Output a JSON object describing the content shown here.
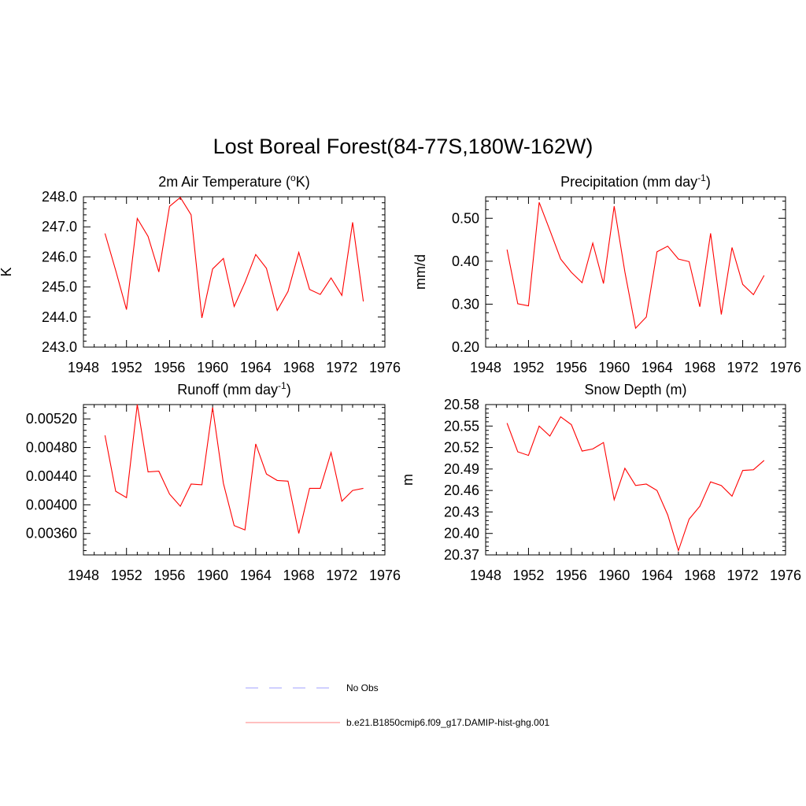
{
  "title": "Lost Boreal Forest(84-77S,180W-162W)",
  "chart_data": [
    {
      "type": "line",
      "title": {
        "main": "2m Air Temperature (",
        "sup": "o",
        "rest": "K)"
      },
      "ylabel": "K",
      "xlim": [
        1948,
        1976
      ],
      "ylim": [
        243.0,
        248.0
      ],
      "yticks": [
        "243.0",
        "244.0",
        "245.0",
        "246.0",
        "247.0",
        "248.0"
      ],
      "xticks": [
        "1948",
        "1952",
        "1956",
        "1960",
        "1964",
        "1968",
        "1972",
        "1976"
      ],
      "x": [
        1950,
        1951,
        1952,
        1953,
        1954,
        1955,
        1956,
        1957,
        1958,
        1959,
        1960,
        1961,
        1962,
        1963,
        1964,
        1965,
        1966,
        1967,
        1968,
        1969,
        1970,
        1971,
        1972,
        1973,
        1974
      ],
      "values": [
        246.78,
        245.55,
        244.25,
        247.28,
        246.68,
        245.5,
        247.68,
        247.98,
        247.4,
        243.97,
        245.6,
        245.95,
        244.35,
        245.15,
        246.08,
        245.62,
        244.22,
        244.85,
        246.15,
        244.92,
        244.75,
        245.3,
        244.72,
        247.15,
        244.52
      ]
    },
    {
      "type": "line",
      "title": {
        "main": "Precipitation (mm day",
        "sup": "-1",
        "rest": ")"
      },
      "ylabel": "mm/d",
      "xlim": [
        1948,
        1976
      ],
      "ylim": [
        0.2,
        0.55
      ],
      "yticks": [
        "0.20",
        "0.30",
        "0.40",
        "0.50"
      ],
      "xticks": [
        "1948",
        "1952",
        "1956",
        "1960",
        "1964",
        "1968",
        "1972",
        "1976"
      ],
      "x": [
        1950,
        1951,
        1952,
        1953,
        1954,
        1955,
        1956,
        1957,
        1958,
        1959,
        1960,
        1961,
        1962,
        1963,
        1964,
        1965,
        1966,
        1967,
        1968,
        1969,
        1970,
        1971,
        1972,
        1973,
        1974
      ],
      "values": [
        0.427,
        0.301,
        0.296,
        0.537,
        0.472,
        0.405,
        0.374,
        0.35,
        0.442,
        0.348,
        0.528,
        0.375,
        0.244,
        0.27,
        0.422,
        0.435,
        0.405,
        0.399,
        0.294,
        0.465,
        0.276,
        0.432,
        0.346,
        0.322,
        0.367
      ]
    },
    {
      "type": "line",
      "title": {
        "main": "Runoff (mm day",
        "sup": "-1",
        "rest": ")"
      },
      "ylabel": "",
      "xlim": [
        1948,
        1976
      ],
      "ylim": [
        0.0033,
        0.0054
      ],
      "yticks": [
        "0.00360",
        "0.00400",
        "0.00440",
        "0.00480",
        "0.00520"
      ],
      "xticks": [
        "1948",
        "1952",
        "1956",
        "1960",
        "1964",
        "1968",
        "1972",
        "1976"
      ],
      "x": [
        1950,
        1951,
        1952,
        1953,
        1954,
        1955,
        1956,
        1957,
        1958,
        1959,
        1960,
        1961,
        1962,
        1963,
        1964,
        1965,
        1966,
        1967,
        1968,
        1969,
        1970,
        1971,
        1972,
        1973,
        1974
      ],
      "values": [
        0.00497,
        0.00419,
        0.0041,
        0.0054,
        0.00446,
        0.00447,
        0.00415,
        0.00398,
        0.00429,
        0.00428,
        0.00536,
        0.0043,
        0.00371,
        0.00365,
        0.00485,
        0.00443,
        0.00434,
        0.00433,
        0.0036,
        0.00423,
        0.00423,
        0.00473,
        0.00405,
        0.0042,
        0.00423
      ]
    },
    {
      "type": "line",
      "title": {
        "main": "Snow Depth (m)",
        "sup": "",
        "rest": ""
      },
      "ylabel": "m",
      "xlim": [
        1948,
        1976
      ],
      "ylim": [
        20.37,
        20.58
      ],
      "yticks": [
        "20.37",
        "20.40",
        "20.43",
        "20.46",
        "20.49",
        "20.52",
        "20.55",
        "20.58"
      ],
      "xticks": [
        "1948",
        "1952",
        "1956",
        "1960",
        "1964",
        "1968",
        "1972",
        "1976"
      ],
      "x": [
        1950,
        1951,
        1952,
        1953,
        1954,
        1955,
        1956,
        1957,
        1958,
        1959,
        1960,
        1961,
        1962,
        1963,
        1964,
        1965,
        1966,
        1967,
        1968,
        1969,
        1970,
        1971,
        1972,
        1973,
        1974
      ],
      "values": [
        20.554,
        20.514,
        20.509,
        20.55,
        20.536,
        20.563,
        20.552,
        20.515,
        20.518,
        20.527,
        20.447,
        20.491,
        20.467,
        20.469,
        20.46,
        20.426,
        20.376,
        20.42,
        20.438,
        20.472,
        20.467,
        20.452,
        20.488,
        20.489,
        20.502
      ]
    }
  ],
  "legend": {
    "placement": "bottom",
    "items": [
      {
        "label": "No Obs",
        "color": "#a0a0ff",
        "style": "dashed"
      },
      {
        "label": "b.e21.B1850cmip6.f09_g17.DAMIP-hist-ghg.001",
        "color": "#ff8080",
        "style": "solid"
      }
    ]
  },
  "colors": {
    "series": "#ff0000",
    "axis": "#000000"
  }
}
